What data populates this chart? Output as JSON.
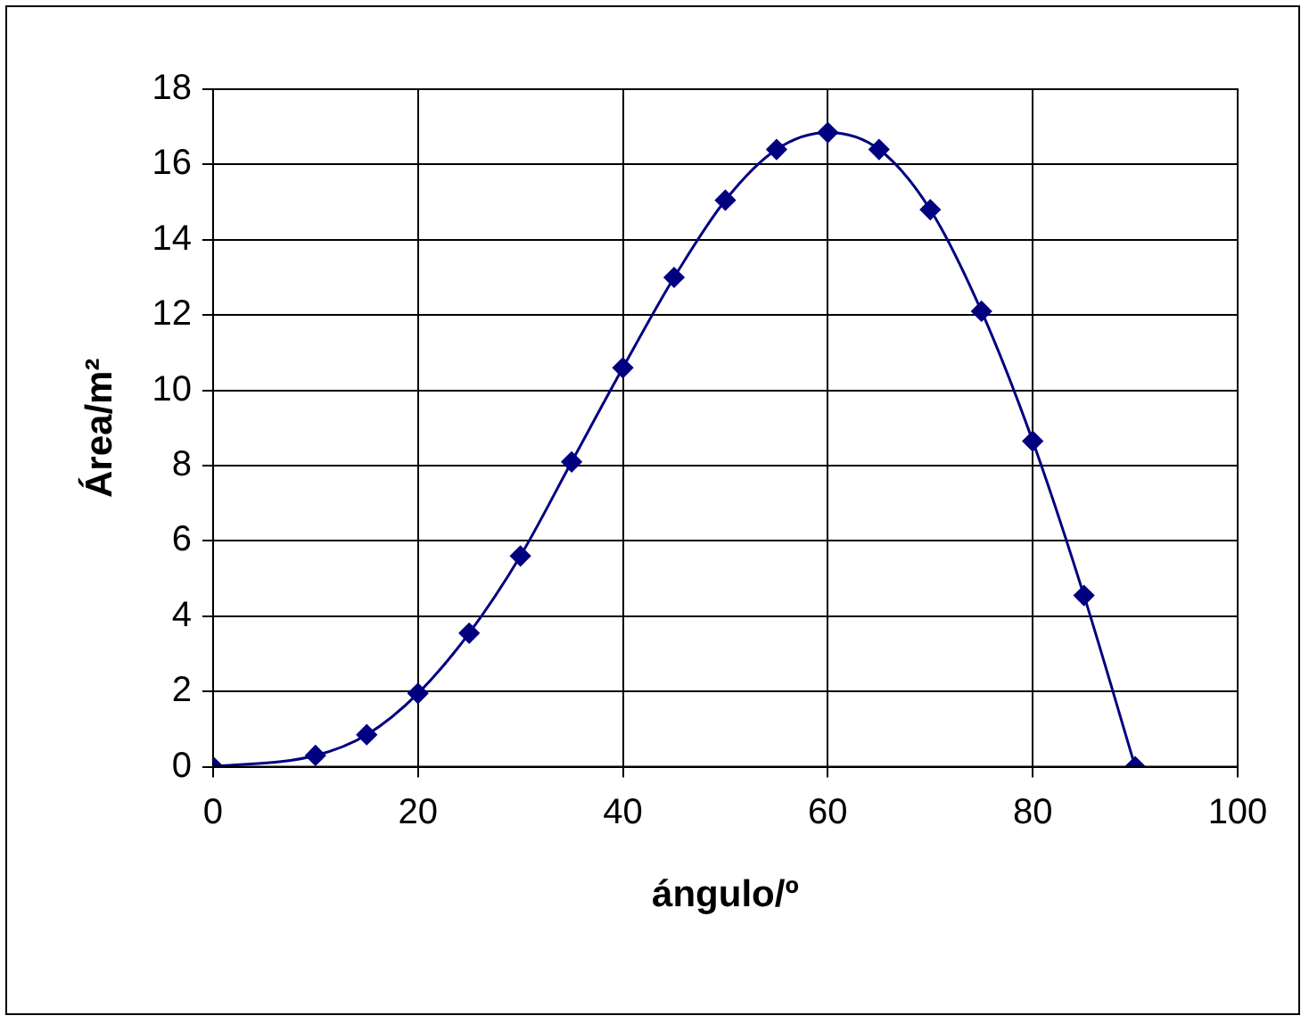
{
  "chart_data": {
    "type": "line",
    "xlabel": "ángulo/º",
    "ylabel": "Área/m²",
    "x": [
      0,
      10,
      15,
      20,
      25,
      30,
      35,
      40,
      45,
      50,
      55,
      60,
      65,
      70,
      75,
      80,
      85,
      90
    ],
    "series": [
      {
        "color": "#000080",
        "values": [
          0,
          0.3,
          0.85,
          1.95,
          3.55,
          5.6,
          8.1,
          10.6,
          13.0,
          15.05,
          16.4,
          16.85,
          16.4,
          14.8,
          12.1,
          8.65,
          4.55,
          0
        ]
      }
    ],
    "xlim": [
      0,
      100
    ],
    "xticks": [
      0,
      20,
      40,
      60,
      80,
      100
    ],
    "ylim": [
      0,
      18
    ],
    "yticks": [
      0,
      2,
      4,
      6,
      8,
      10,
      12,
      14,
      16,
      18
    ],
    "grid": true,
    "legend": false,
    "marker": "diamond",
    "line_style": "solid"
  }
}
